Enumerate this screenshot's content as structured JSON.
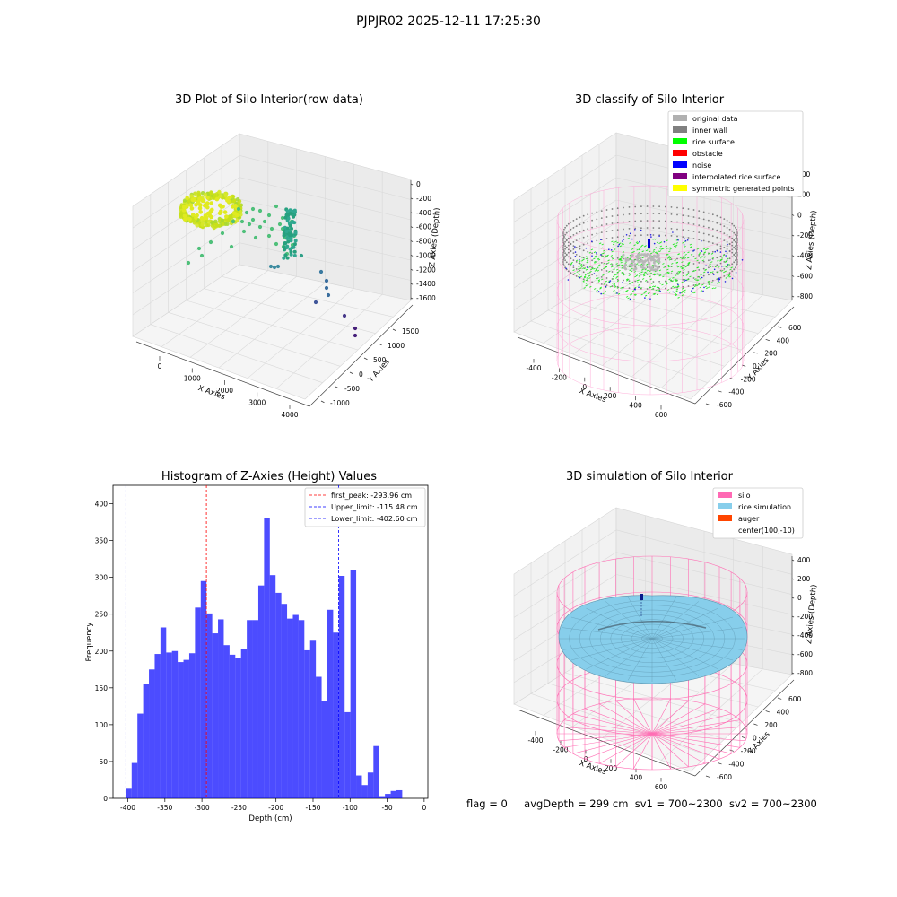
{
  "suptitle": "PJPJR02 2025-12-11 17:25:30",
  "panels": {
    "raw": {
      "title": "3D Plot of Silo Interior(row data)",
      "xlabel": "X Axies",
      "ylabel": "Y Axies",
      "zlabel": "Z Axies (Depth)",
      "xticks": [
        "0",
        "1000",
        "2000",
        "3000",
        "4000"
      ],
      "yticks": [
        "-1000",
        "-500",
        "0",
        "500",
        "1000",
        "1500"
      ],
      "zticks": [
        "0",
        "-200",
        "-400",
        "-600",
        "-800",
        "-1000",
        "-1200",
        "-1400",
        "-1600"
      ]
    },
    "classify": {
      "title": "3D classify of Silo Interior",
      "xlabel": "X Axies",
      "ylabel": "Y Axies",
      "zlabel": "Z Axies (Depth)",
      "xticks": [
        "-400",
        "-200",
        "0",
        "200",
        "400",
        "600"
      ],
      "yticks": [
        "-600",
        "-400",
        "-200",
        "0",
        "200",
        "400",
        "600"
      ],
      "zticks": [
        "400",
        "200",
        "0",
        "-200",
        "-400",
        "-600",
        "-800"
      ],
      "legend": [
        {
          "label": "original data",
          "color": "#b0b0b0"
        },
        {
          "label": "inner wall",
          "color": "#808080"
        },
        {
          "label": "rice surface",
          "color": "#00ff00"
        },
        {
          "label": "obstacle",
          "color": "#ff0000"
        },
        {
          "label": "noise",
          "color": "#0000ff"
        },
        {
          "label": "interpolated rice surface",
          "color": "#800080"
        },
        {
          "label": "symmetric generated points",
          "color": "#ffff00"
        }
      ]
    },
    "simulation": {
      "title": "3D simulation of Silo Interior",
      "xlabel": "X Axies",
      "ylabel": "Y Axies",
      "zlabel": "Z Axies (Depth)",
      "xticks": [
        "-400",
        "-200",
        "0",
        "200",
        "400",
        "600"
      ],
      "yticks": [
        "-600",
        "-400",
        "-200",
        "0",
        "200",
        "400",
        "600"
      ],
      "zticks": [
        "400",
        "200",
        "0",
        "-200",
        "-400",
        "-600",
        "-800"
      ],
      "legend": [
        {
          "label": "silo",
          "color": "#ff69b4"
        },
        {
          "label": "rice simulation",
          "color": "#87ceeb"
        },
        {
          "label": "auger",
          "color": "#ff4500"
        },
        {
          "label": "center(100,-10)",
          "color": ""
        }
      ]
    }
  },
  "chart_data": {
    "type": "bar",
    "title": "Histogram of Z-Axies (Height) Values",
    "xlabel": "Depth (cm)",
    "ylabel": "Frequency",
    "xlim": [
      -420,
      5
    ],
    "ylim": [
      0,
      425
    ],
    "xticks": [
      -400,
      -350,
      -300,
      -250,
      -200,
      -150,
      -100,
      -50,
      0
    ],
    "yticks": [
      0,
      50,
      100,
      150,
      200,
      250,
      300,
      350,
      400
    ],
    "bin_start": -402.6,
    "bin_width": 7.77,
    "values": [
      13,
      48,
      115,
      155,
      175,
      196,
      232,
      198,
      200,
      185,
      188,
      197,
      259,
      295,
      251,
      224,
      243,
      208,
      195,
      190,
      203,
      242,
      242,
      289,
      381,
      303,
      279,
      264,
      244,
      249,
      242,
      201,
      214,
      165,
      132,
      256,
      225,
      302,
      117,
      310,
      31,
      18,
      35,
      71,
      3,
      6,
      10,
      11
    ],
    "bar_color": "#0000ff",
    "bar_alpha": 0.7,
    "reference_lines": [
      {
        "label": "first_peak: -293.96 cm",
        "x": -293.96,
        "color": "#ff0000"
      },
      {
        "label": "Upper_limit: -115.48 cm",
        "x": -115.48,
        "color": "#0000ff"
      },
      {
        "label": "Lower_limit: -402.60 cm",
        "x": -402.6,
        "color": "#0000ff"
      }
    ],
    "legend_position": "top-right"
  },
  "footer": {
    "flag": "flag = 0",
    "avg_depth": "avgDepth = 299 cm",
    "sv1": "sv1 = 700~2300",
    "sv2": "sv2 = 700~2300"
  }
}
